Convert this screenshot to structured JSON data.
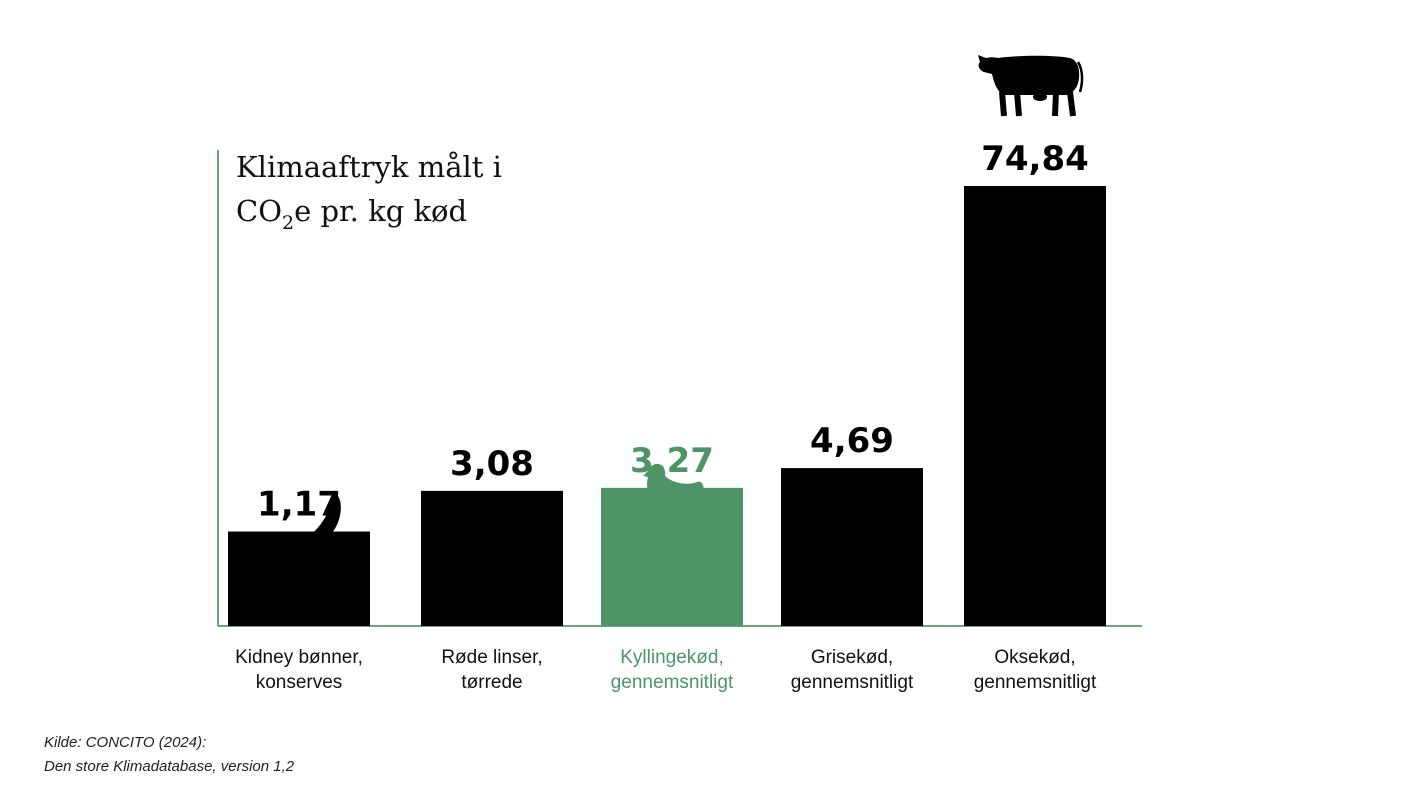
{
  "chart_data": {
    "type": "bar",
    "title": {
      "line1": "Klimaaftryk målt i",
      "line2_prefix": "CO",
      "line2_subscript": "2",
      "line2_suffix": "e pr. kg kød"
    },
    "categories": [
      [
        "Kidney bønner,",
        "konserves"
      ],
      [
        "Røde linser,",
        "tørrede"
      ],
      [
        "Kyllingekød,",
        "gennemsnitligt"
      ],
      [
        "Grisekød,",
        "gennemsnitligt"
      ],
      [
        "Oksekød,",
        "gennemsnitligt"
      ]
    ],
    "values": [
      1.17,
      3.08,
      3.27,
      4.69,
      74.84
    ],
    "value_labels": [
      "1,17",
      "3,08",
      "3,27",
      "4,69",
      "74,84"
    ],
    "icons": [
      "kidney-bean-icon",
      "lentils-icon",
      "chicken-icon",
      "pig-icon",
      "cow-icon"
    ],
    "highlight_index": 2,
    "scale": "non-linear (short bars visually exaggerated)",
    "grid": false,
    "legend": "none"
  },
  "colors": {
    "bar": "#000000",
    "highlight": "#4f9467",
    "axis": "#6aa57c",
    "text": "#111111"
  },
  "source": {
    "line1": "Kilde: CONCITO (2024):",
    "line2": "Den store Klimadatabase, version 1,2"
  }
}
